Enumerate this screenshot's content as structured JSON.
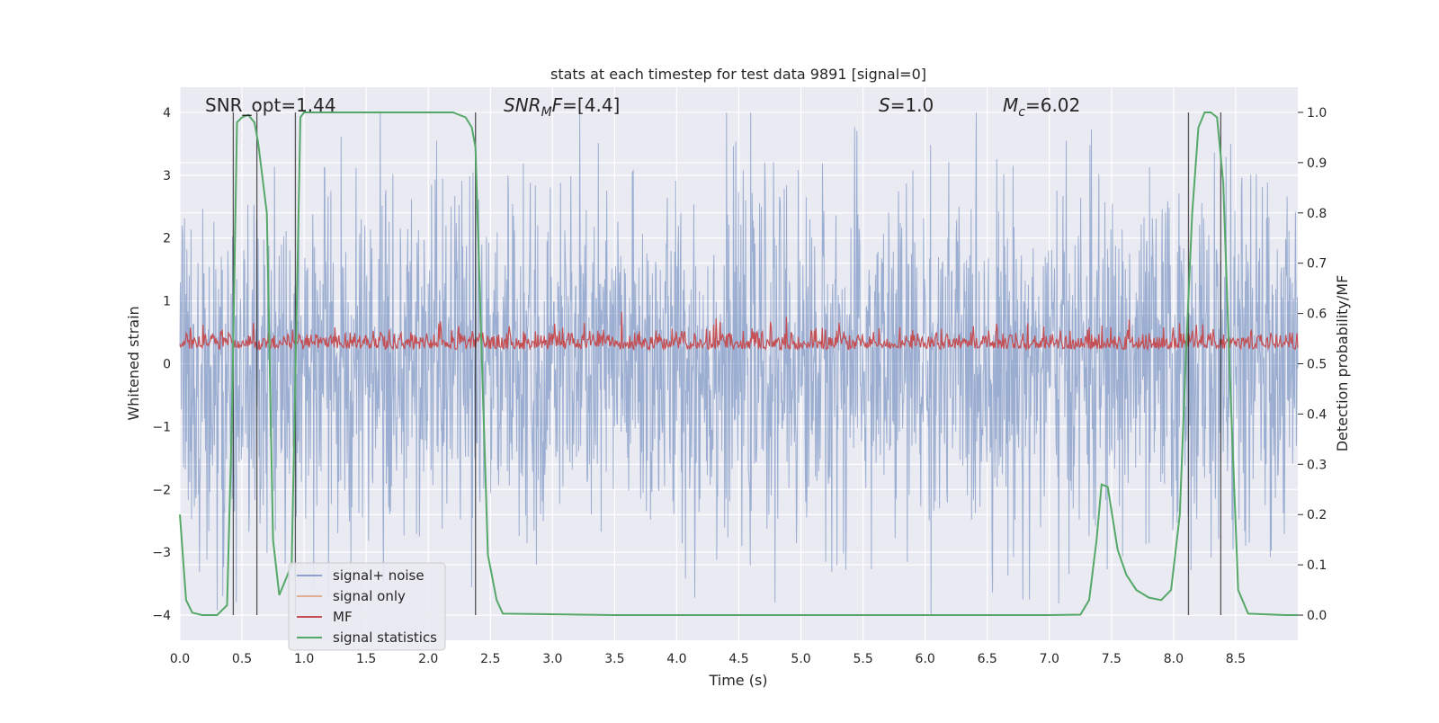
{
  "chart_data": {
    "type": "line",
    "title": "stats at each timestep for test data 9891 [signal=0]",
    "xlabel": "Time (s)",
    "ylabel": "Whitened strain",
    "y2label": "Detection probability/MF",
    "xlim": [
      0,
      9.0
    ],
    "ylim": [
      -4.4,
      4.4
    ],
    "y2lim": [
      -0.05,
      1.05
    ],
    "xticks": [
      "0.0",
      "0.5",
      "1.0",
      "1.5",
      "2.0",
      "2.5",
      "3.0",
      "3.5",
      "4.0",
      "4.5",
      "5.0",
      "5.5",
      "6.0",
      "6.5",
      "7.0",
      "7.5",
      "8.0",
      "8.5"
    ],
    "yticks": [
      "4",
      "3",
      "2",
      "1",
      "0",
      "−1",
      "−2",
      "−3",
      "−4"
    ],
    "y2ticks": [
      "1.0",
      "0.9",
      "0.8",
      "0.7",
      "0.6",
      "0.5",
      "0.4",
      "0.3",
      "0.2",
      "0.1",
      "0.0"
    ],
    "grid": true,
    "legend_position": "lower-left",
    "colors": {
      "background": "#eaeaf2",
      "grid": "#ffffff",
      "noise": "#4c72b0",
      "signal_only": "#dd8452",
      "mf": "#c44e52",
      "stat": "#55a868",
      "vlines": "#222222"
    },
    "annotations": {
      "snr_opt_label": "SNR_opt",
      "snr_opt_value": "=1.44",
      "snr_mf_label": "SNR",
      "snr_mf_sub": "M",
      "snr_mf_suffix": "F",
      "snr_mf_value": "=[4.4]",
      "s_label": "S",
      "s_value": "=1.0",
      "mc_label": "M",
      "mc_sub": "c",
      "mc_value": "=6.02"
    },
    "series": [
      {
        "name": "signal+ noise",
        "kind": "noise",
        "x_range": [
          0,
          9.0
        ],
        "amplitude_typical": 1.6,
        "amplitude_peak": 4.0
      },
      {
        "name": "signal only",
        "kind": "flat",
        "values": []
      },
      {
        "name": "MF",
        "kind": "noise-positive",
        "x_range": [
          0,
          9.0
        ],
        "mean": 0.28,
        "amplitude_typical": 0.55,
        "amplitude_peak": 1.0
      },
      {
        "name": "signal statistics",
        "kind": "line",
        "axis": "right",
        "x": [
          0.0,
          0.05,
          0.1,
          0.18,
          0.3,
          0.38,
          0.42,
          0.46,
          0.5,
          0.55,
          0.6,
          0.63,
          0.7,
          0.75,
          0.8,
          0.9,
          0.94,
          0.97,
          1.0,
          1.5,
          2.0,
          2.2,
          2.3,
          2.35,
          2.38,
          2.42,
          2.48,
          2.55,
          2.6,
          2.9,
          3.5,
          4.5,
          5.5,
          6.5,
          7.0,
          7.25,
          7.32,
          7.38,
          7.42,
          7.47,
          7.55,
          7.62,
          7.7,
          7.8,
          7.9,
          7.98,
          8.05,
          8.1,
          8.15,
          8.2,
          8.25,
          8.3,
          8.35,
          8.4,
          8.45,
          8.52,
          8.6,
          8.9,
          9.0
        ],
        "y": [
          0.2,
          0.03,
          0.005,
          0.0,
          0.0,
          0.02,
          0.4,
          0.98,
          0.99,
          0.995,
          0.98,
          0.94,
          0.8,
          0.15,
          0.04,
          0.1,
          0.6,
          0.99,
          1.0,
          1.0,
          1.0,
          1.0,
          0.99,
          0.97,
          0.93,
          0.6,
          0.12,
          0.03,
          0.003,
          0.002,
          0.0,
          0.0,
          0.0,
          0.0,
          0.0,
          0.001,
          0.03,
          0.15,
          0.26,
          0.255,
          0.13,
          0.08,
          0.05,
          0.035,
          0.03,
          0.05,
          0.2,
          0.52,
          0.8,
          0.97,
          1.0,
          1.0,
          0.99,
          0.86,
          0.5,
          0.05,
          0.003,
          0.0,
          0.0
        ]
      }
    ],
    "vertical_lines_x": [
      0.43,
      0.62,
      0.93,
      2.38,
      8.12,
      8.38
    ]
  }
}
